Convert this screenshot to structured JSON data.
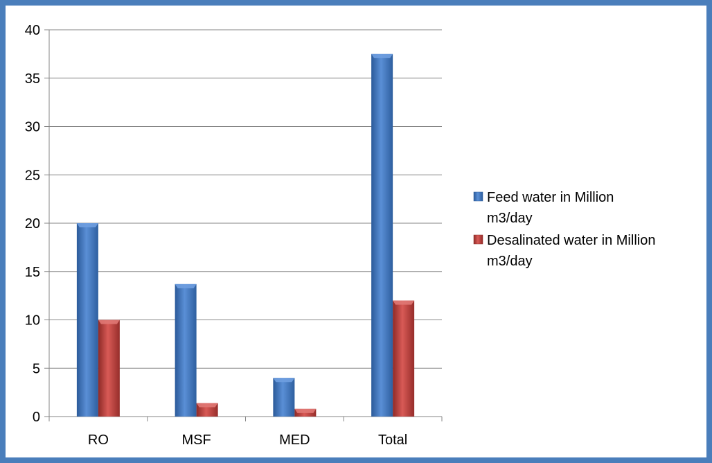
{
  "chart_data": {
    "type": "bar",
    "title": "",
    "xlabel": "",
    "ylabel": "",
    "categories": [
      "RO",
      "MSF",
      "MED",
      "Total"
    ],
    "series": [
      {
        "name": "Feed water in Million m3/day",
        "name_lines": [
          "Feed water in Million",
          "m3/day"
        ],
        "color": "#4a7ebb",
        "values": [
          20,
          13.7,
          4,
          37.5
        ]
      },
      {
        "name": "Desalinated water in Million m3/day",
        "name_lines": [
          "Desalinated water in Million",
          "m3/day"
        ],
        "color": "#c0504d",
        "values": [
          10,
          1.4,
          0.8,
          12
        ]
      }
    ],
    "ylim": [
      0,
      40
    ],
    "yticks": [
      0,
      5,
      10,
      15,
      20,
      25,
      30,
      35,
      40
    ],
    "grid": true,
    "legend_position": "right"
  }
}
